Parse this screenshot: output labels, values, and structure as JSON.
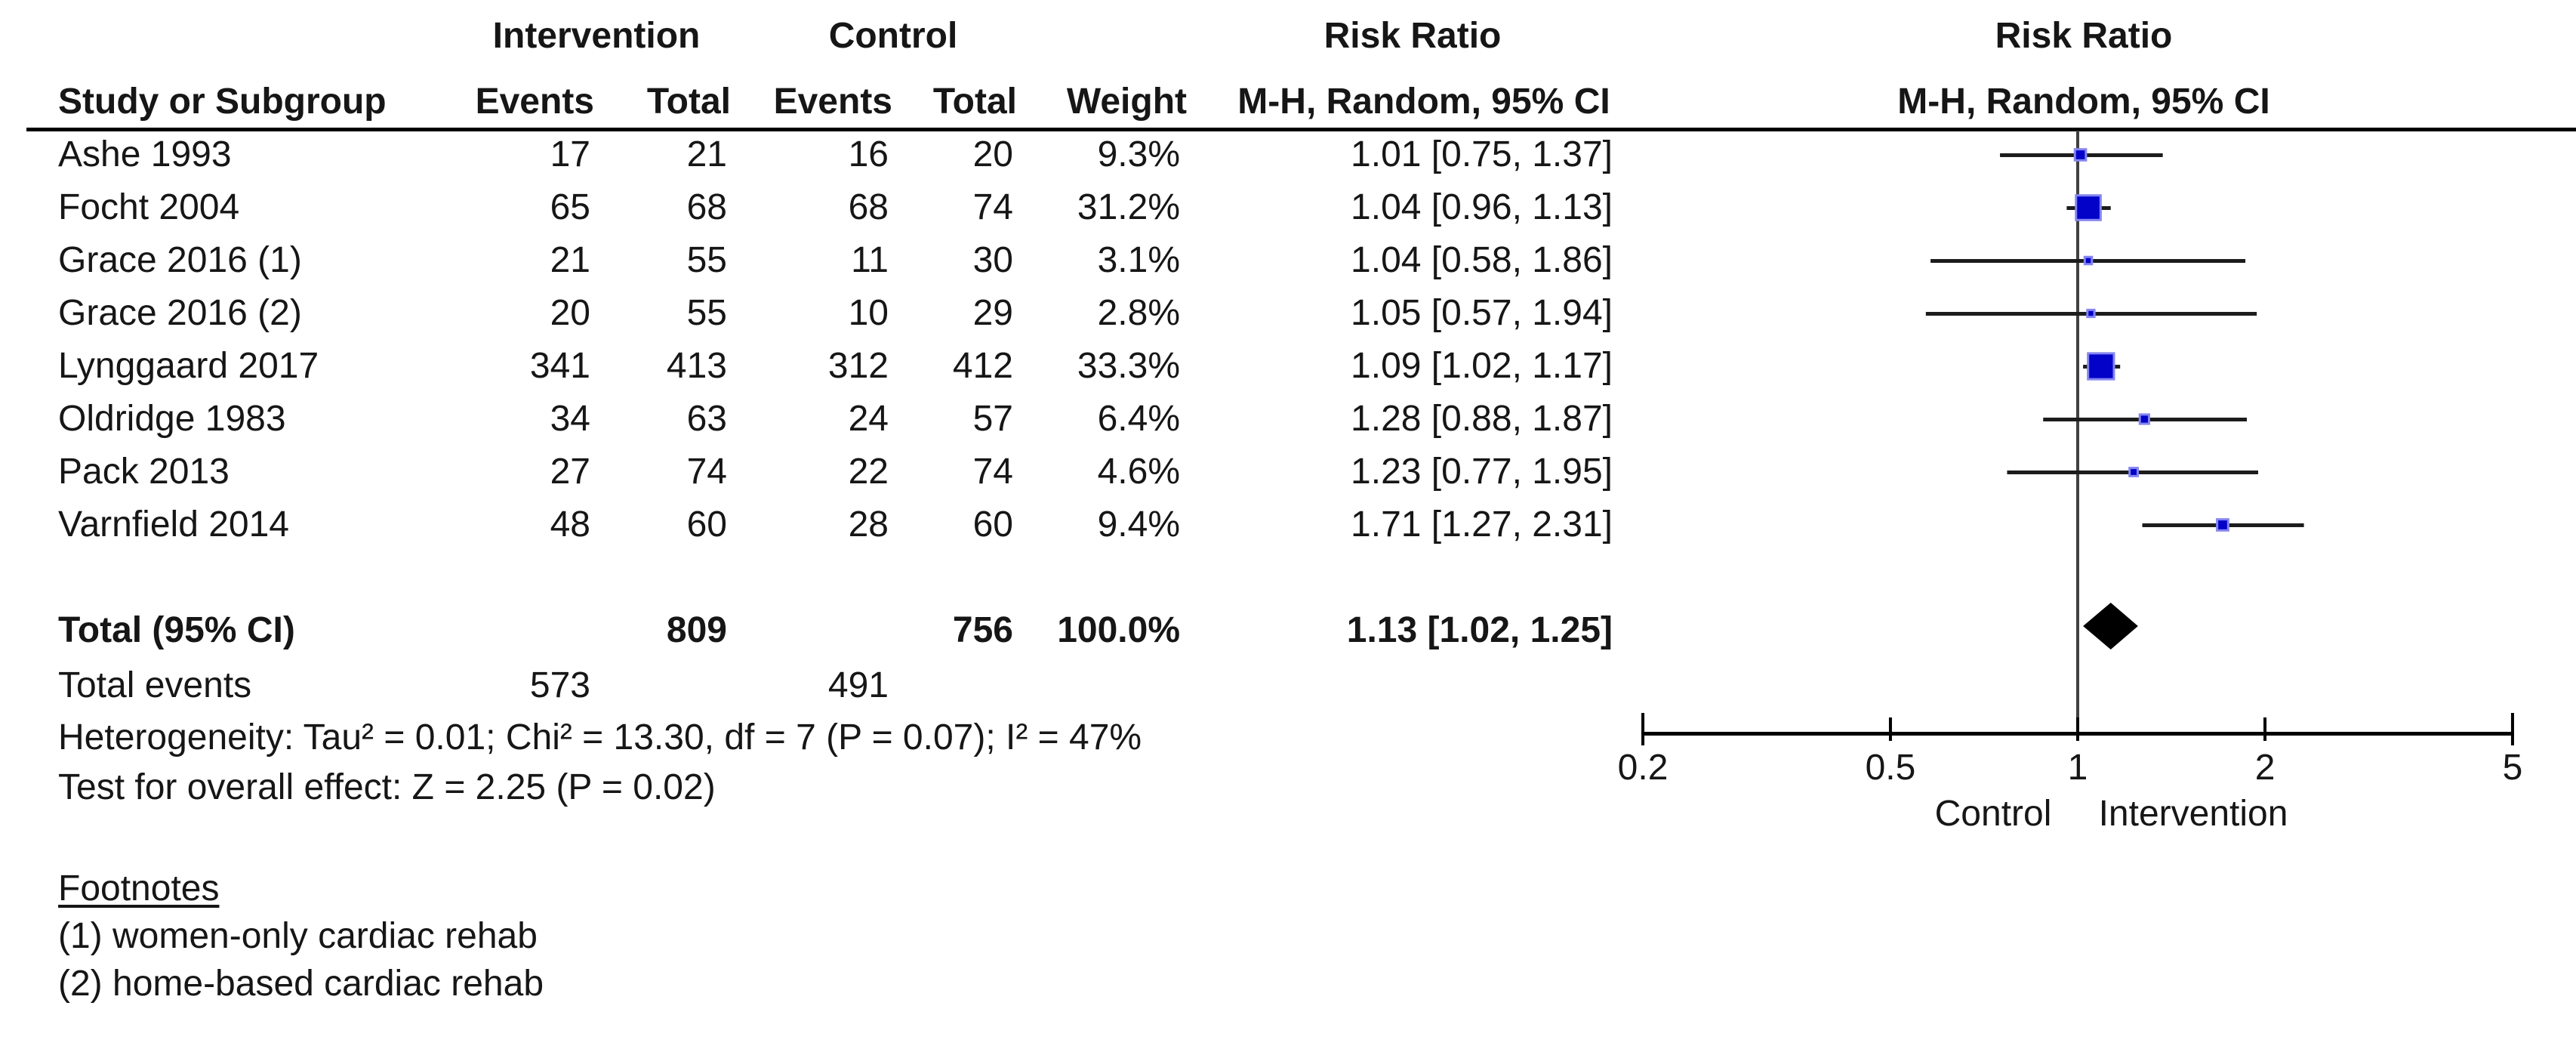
{
  "table": {
    "group_headers": {
      "intervention": "Intervention",
      "control": "Control",
      "risk_ratio_left": "Risk Ratio",
      "risk_ratio_right": "Risk Ratio"
    },
    "col_headers": {
      "study": "Study or Subgroup",
      "events_intervention": "Events",
      "total_intervention": "Total",
      "events_control": "Events",
      "total_control": "Total",
      "weight": "Weight",
      "mh_random_left": "M-H, Random, 95% CI",
      "mh_random_right": "M-H, Random, 95% CI"
    },
    "total_row_label": "Total (95% CI)",
    "total_events_label": "Total events"
  },
  "stats": {
    "heterogeneity": "Heterogeneity: Tau² = 0.01; Chi² = 13.30, df = 7 (P = 0.07); I² = 47%",
    "overall_effect": "Test for overall effect: Z = 2.25 (P = 0.02)"
  },
  "footnotes": {
    "title": "Footnotes",
    "items": [
      "(1) women-only cardiac rehab",
      "(2) home-based cardiac rehab"
    ]
  },
  "axis": {
    "ticks": [
      "0.2",
      "0.5",
      "1",
      "2",
      "5"
    ],
    "tick_values": [
      0.2,
      0.5,
      1,
      2,
      5
    ],
    "left_label": "Control",
    "right_label": "Intervention"
  },
  "colors": {
    "marker_fill": "#0202c8",
    "marker_border": "#8585f0",
    "diamond_fill": "#000000",
    "ci_line": "#1c1c1c",
    "center_line": "#404040",
    "axis_line": "#000000",
    "text": "#161616"
  },
  "chart_data": {
    "type": "forest",
    "effect_measure": "Risk Ratio",
    "method": "M-H, Random, 95% CI",
    "x_scale": "log",
    "x_ticks": [
      0.2,
      0.5,
      1,
      2,
      5
    ],
    "x_range": [
      0.2,
      5
    ],
    "axis_labels": {
      "left": "Control",
      "right": "Intervention"
    },
    "studies": [
      {
        "name": "Ashe 1993",
        "events_intervention": 17,
        "total_intervention": 21,
        "events_control": 16,
        "total_control": 20,
        "weight_pct": 9.3,
        "rr": 1.01,
        "ci_low": 0.75,
        "ci_high": 1.37
      },
      {
        "name": "Focht 2004",
        "events_intervention": 65,
        "total_intervention": 68,
        "events_control": 68,
        "total_control": 74,
        "weight_pct": 31.2,
        "rr": 1.04,
        "ci_low": 0.96,
        "ci_high": 1.13
      },
      {
        "name": "Grace 2016 (1)",
        "events_intervention": 21,
        "total_intervention": 55,
        "events_control": 11,
        "total_control": 30,
        "weight_pct": 3.1,
        "rr": 1.04,
        "ci_low": 0.58,
        "ci_high": 1.86
      },
      {
        "name": "Grace 2016 (2)",
        "events_intervention": 20,
        "total_intervention": 55,
        "events_control": 10,
        "total_control": 29,
        "weight_pct": 2.8,
        "rr": 1.05,
        "ci_low": 0.57,
        "ci_high": 1.94
      },
      {
        "name": "Lynggaard 2017",
        "events_intervention": 341,
        "total_intervention": 413,
        "events_control": 312,
        "total_control": 412,
        "weight_pct": 33.3,
        "rr": 1.09,
        "ci_low": 1.02,
        "ci_high": 1.17
      },
      {
        "name": "Oldridge 1983",
        "events_intervention": 34,
        "total_intervention": 63,
        "events_control": 24,
        "total_control": 57,
        "weight_pct": 6.4,
        "rr": 1.28,
        "ci_low": 0.88,
        "ci_high": 1.87
      },
      {
        "name": "Pack 2013",
        "events_intervention": 27,
        "total_intervention": 74,
        "events_control": 22,
        "total_control": 74,
        "weight_pct": 4.6,
        "rr": 1.23,
        "ci_low": 0.77,
        "ci_high": 1.95
      },
      {
        "name": "Varnfield 2014",
        "events_intervention": 48,
        "total_intervention": 60,
        "events_control": 28,
        "total_control": 60,
        "weight_pct": 9.4,
        "rr": 1.71,
        "ci_low": 1.27,
        "ci_high": 2.31
      }
    ],
    "total": {
      "label": "Total (95% CI)",
      "total_intervention": 809,
      "total_control": 756,
      "weight_pct": 100.0,
      "rr": 1.13,
      "ci_low": 1.02,
      "ci_high": 1.25,
      "total_events_intervention": 573,
      "total_events_control": 491
    },
    "heterogeneity": "Tau² = 0.01; Chi² = 13.30, df = 7 (P = 0.07); I² = 47%",
    "overall_effect": "Z = 2.25 (P = 0.02)"
  }
}
